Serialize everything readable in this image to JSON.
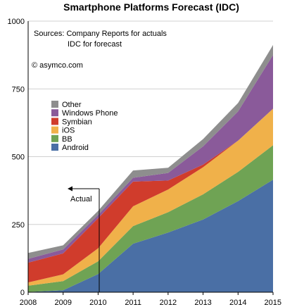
{
  "chart_data": {
    "type": "area",
    "stacked": true,
    "title": "Smartphone Platforms Forecast (IDC)",
    "notes": [
      "Sources: Company Reports for actuals",
      "IDC for forecast",
      "© asymco.com"
    ],
    "annotation": "Actual",
    "x": [
      2008,
      2009,
      2010,
      2011,
      2012,
      2013,
      2014,
      2015
    ],
    "ylim": [
      0,
      1000
    ],
    "yticks": [
      0,
      250,
      500,
      750,
      1000
    ],
    "grid": true,
    "legend_position": "left",
    "series": [
      {
        "name": "Android",
        "color": "#4a6fa5",
        "values": [
          1,
          7,
          67,
          179,
          220,
          268,
          336,
          415
        ]
      },
      {
        "name": "BB",
        "color": "#6fa354",
        "values": [
          23,
          34,
          47,
          65,
          75,
          93,
          108,
          127
        ]
      },
      {
        "name": "iOS",
        "color": "#f0b14a",
        "values": [
          12,
          25,
          48,
          73,
          84,
          100,
          115,
          135
        ]
      },
      {
        "name": "Symbian",
        "color": "#d03c2c",
        "values": [
          73,
          77,
          111,
          91,
          33,
          10,
          0,
          0
        ]
      },
      {
        "name": "Windows Phone",
        "color": "#8a5a9a",
        "values": [
          14,
          15,
          12,
          14,
          28,
          67,
          108,
          198
        ]
      },
      {
        "name": "Other",
        "color": "#8e8e8e",
        "values": [
          22,
          15,
          15,
          27,
          19,
          27,
          31,
          37
        ]
      }
    ]
  }
}
